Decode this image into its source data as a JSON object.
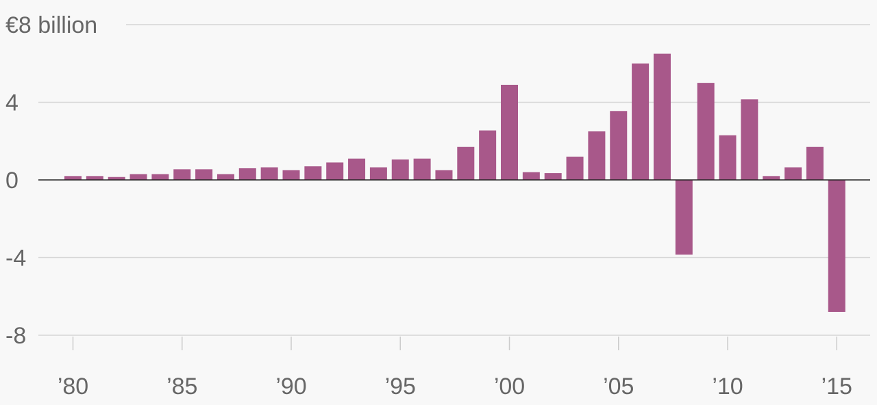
{
  "chart_data": {
    "type": "bar",
    "title": "",
    "xlabel": "",
    "ylabel": "",
    "ylim": [
      -8,
      8
    ],
    "y_ticks": [
      {
        "value": 8,
        "label": "€8 billion"
      },
      {
        "value": 4,
        "label": "4"
      },
      {
        "value": 0,
        "label": "0"
      },
      {
        "value": -4,
        "label": "-4"
      },
      {
        "value": -8,
        "label": "-8"
      }
    ],
    "x_ticks": [
      {
        "year": 1980,
        "label": "’80"
      },
      {
        "year": 1985,
        "label": "’85"
      },
      {
        "year": 1990,
        "label": "’90"
      },
      {
        "year": 1995,
        "label": "’95"
      },
      {
        "year": 2000,
        "label": "’00"
      },
      {
        "year": 2005,
        "label": "’05"
      },
      {
        "year": 2010,
        "label": "’10"
      },
      {
        "year": 2015,
        "label": "’15"
      }
    ],
    "categories": [
      1980,
      1981,
      1982,
      1983,
      1984,
      1985,
      1986,
      1987,
      1988,
      1989,
      1990,
      1991,
      1992,
      1993,
      1994,
      1995,
      1996,
      1997,
      1998,
      1999,
      2000,
      2001,
      2002,
      2003,
      2004,
      2005,
      2006,
      2007,
      2008,
      2009,
      2010,
      2011,
      2012,
      2013,
      2014,
      2015
    ],
    "values": [
      0.2,
      0.2,
      0.15,
      0.3,
      0.3,
      0.55,
      0.55,
      0.3,
      0.6,
      0.65,
      0.5,
      0.7,
      0.9,
      1.1,
      0.65,
      1.05,
      1.1,
      0.5,
      1.7,
      2.55,
      4.9,
      0.4,
      0.35,
      1.2,
      2.5,
      3.55,
      6.0,
      6.5,
      -3.85,
      5.0,
      2.3,
      4.15,
      0.2,
      0.65,
      1.7,
      -6.8
    ],
    "bar_color": "#a8588a",
    "grid": true
  }
}
